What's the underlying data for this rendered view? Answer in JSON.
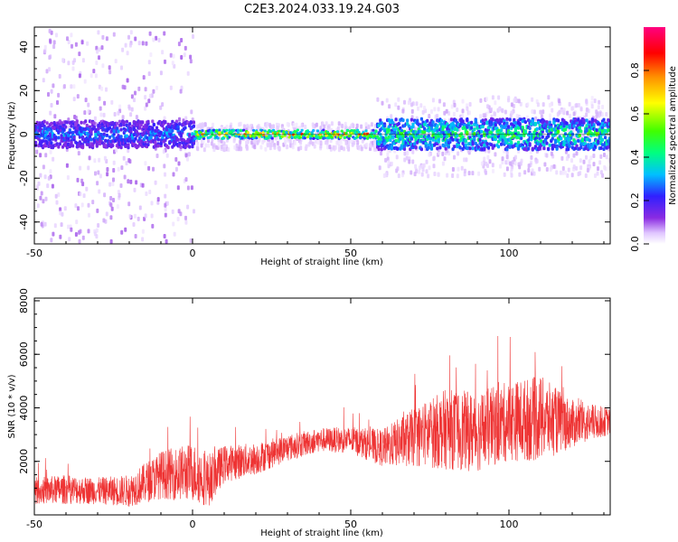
{
  "title": "C2E3.2024.033.19.24.G03",
  "colors": {
    "snr_line": "#ee3333",
    "colormap": [
      "#ffffff",
      "#e0c6ff",
      "#8a2be2",
      "#3020ff",
      "#00c0ff",
      "#00ff80",
      "#40ff00",
      "#ffff00",
      "#ff9000",
      "#ff0000",
      "#ff0080"
    ]
  },
  "chart_data": [
    {
      "type": "heatmap",
      "xlabel": "Height of straight line (km)",
      "ylabel": "Frequency (Hz)",
      "xlim": [
        -50,
        132
      ],
      "ylim": [
        -50,
        49
      ],
      "x_ticks": [
        -50,
        0,
        50,
        100
      ],
      "y_ticks": [
        -40,
        -20,
        0,
        20,
        40
      ],
      "colorbar": {
        "label": "Normalized spectral amplitude",
        "range": [
          0,
          1
        ],
        "ticks": [
          "0.0",
          "0.2",
          "0.4",
          "0.6",
          "0.8"
        ]
      },
      "band": {
        "center_hz": 0,
        "segments": [
          {
            "x_from": -50,
            "x_to": 0,
            "spread_hz": 6,
            "peak_amplitude": 0.35,
            "scatter": "wide"
          },
          {
            "x_from": 0,
            "x_to": 58,
            "spread_hz": 2,
            "peak_amplitude": 0.95,
            "scatter": "low"
          },
          {
            "x_from": 58,
            "x_to": 132,
            "spread_hz": 7,
            "peak_amplitude": 0.6,
            "scatter": "medium"
          }
        ]
      }
    },
    {
      "type": "line",
      "xlabel": "Height of straight line (km)",
      "ylabel": "SNR (10 * v/v)",
      "xlim": [
        -50,
        132
      ],
      "ylim": [
        0,
        8100
      ],
      "x_ticks": [
        -50,
        0,
        50,
        100
      ],
      "y_ticks": [
        2000,
        4000,
        6000,
        8000
      ],
      "series": [
        {
          "x": [
            -50,
            -40,
            -30,
            -20,
            -10,
            0,
            5,
            10,
            20,
            30,
            40,
            50,
            60,
            70,
            80,
            90,
            100,
            110,
            120,
            132
          ],
          "y_mean": [
            900,
            950,
            900,
            900,
            1500,
            1600,
            1300,
            1900,
            2100,
            2500,
            2800,
            2800,
            2500,
            2900,
            3200,
            3100,
            3500,
            3600,
            3400,
            3500
          ],
          "y_spread": [
            500,
            550,
            500,
            600,
            900,
            1100,
            1000,
            700,
            600,
            500,
            450,
            500,
            700,
            1100,
            1500,
            1500,
            1500,
            1600,
            900,
            500
          ]
        }
      ]
    }
  ]
}
